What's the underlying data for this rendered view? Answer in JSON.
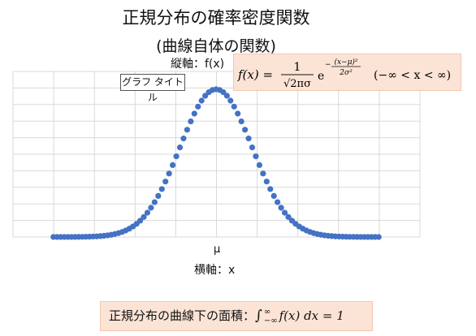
{
  "title_line1": "正規分布の確率密度関数",
  "title_line2": "(曲線自体の関数)",
  "ylabel": "縦軸：f(x)",
  "xlabel": "横軸：x",
  "mu_label": "μ",
  "chart_title_placeholder": "グラフ タイトル",
  "formula": {
    "lhs": "f(x) =",
    "numerator": "1",
    "denominator": "√2πσ",
    "base": "e",
    "exponent_numerator": "(x−μ)²",
    "exponent_denominator": "2σ²",
    "domain": "(−∞ < x < ∞)"
  },
  "area": {
    "label": "正規分布の曲線下の面積：",
    "integral": "∫",
    "upper": "∞",
    "lower": "−∞",
    "integrand": "f(x) dx = 1"
  },
  "chart_data": {
    "type": "scatter",
    "mu": 0,
    "sigma": 1,
    "x_range": [
      -4.5,
      4.5
    ],
    "x_step": 0.1,
    "grid": true,
    "marker_color": "#4472c4",
    "grid_color": "#d9d9d9"
  }
}
